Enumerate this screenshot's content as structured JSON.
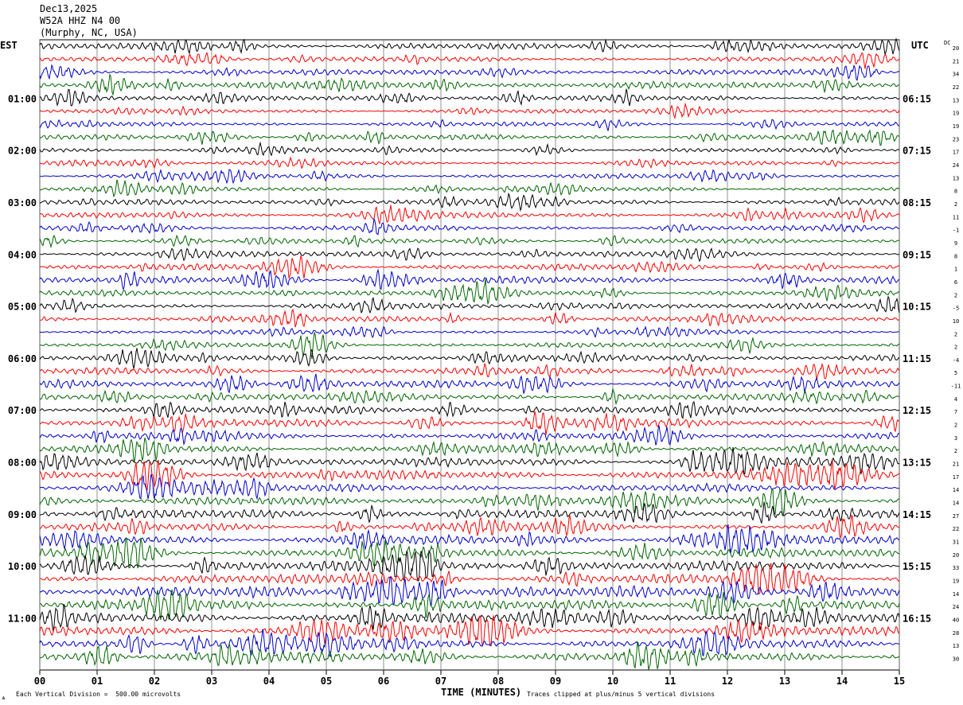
{
  "header": {
    "date": "Dec13,2025",
    "station": "W52A HHZ N4 00",
    "location": "(Murphy, NC, USA)"
  },
  "labels": {
    "left_tz": "EST",
    "right_tz": "UTC",
    "dc": "DC",
    "xlabel": "TIME (MINUTES)",
    "foot_left": "Each Vertical Division =  500.00 microvolts",
    "foot_right": "Traces clipped at plus/minus 5 vertical divisions",
    "corner": "ѧ"
  },
  "chart_data": {
    "type": "line",
    "title": "",
    "xlabel": "TIME (MINUTES)",
    "xlim": [
      0,
      15
    ],
    "x_ticks": [
      "00",
      "01",
      "02",
      "03",
      "04",
      "05",
      "06",
      "07",
      "08",
      "09",
      "10",
      "11",
      "12",
      "13",
      "14",
      "15"
    ],
    "left_hour_labels": [
      "01:00",
      "02:00",
      "03:00",
      "04:00",
      "05:00",
      "06:00",
      "07:00",
      "08:00",
      "09:00",
      "10:00",
      "11:00"
    ],
    "right_hour_labels": [
      "06:15",
      "07:15",
      "08:15",
      "09:15",
      "10:15",
      "11:15",
      "12:15",
      "13:15",
      "14:15",
      "15:15",
      "16:15"
    ],
    "trace_colors": [
      "#000000",
      "#ff0000",
      "#0000cc",
      "#006600"
    ],
    "dc_offsets": [
      20,
      21,
      34,
      22,
      13,
      19,
      19,
      23,
      17,
      24,
      13,
      8,
      2,
      11,
      -1,
      9,
      8,
      1,
      6,
      2,
      -5,
      10,
      2,
      2,
      -4,
      5,
      -11,
      4,
      7,
      2,
      3,
      2,
      21,
      17,
      14,
      14,
      27,
      22,
      31,
      20,
      33,
      19,
      14,
      24,
      40,
      28,
      13,
      30
    ],
    "trace_amplitude": [
      0.9,
      0.7,
      0.8,
      1.0,
      0.8,
      0.6,
      0.6,
      0.8,
      0.6,
      0.6,
      0.7,
      0.7,
      0.8,
      0.8,
      0.7,
      0.7,
      0.8,
      0.9,
      1.0,
      0.9,
      0.8,
      0.8,
      0.7,
      0.7,
      0.9,
      1.0,
      1.1,
      1.0,
      1.1,
      1.2,
      1.0,
      1.1,
      1.2,
      1.3,
      1.1,
      1.2,
      1.3,
      1.2,
      1.3,
      1.3,
      1.4,
      1.3,
      1.6,
      1.4,
      1.5,
      1.5,
      1.4,
      1.5
    ]
  }
}
